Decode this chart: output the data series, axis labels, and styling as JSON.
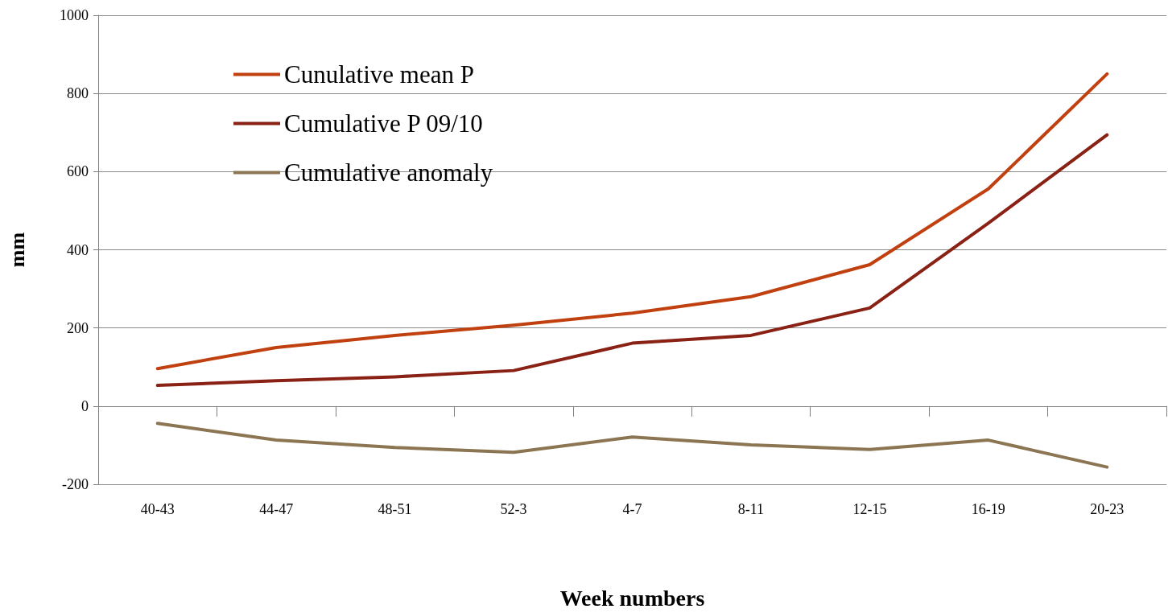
{
  "chart_data": {
    "type": "line",
    "xlabel": "Week numbers",
    "ylabel": "mm",
    "categories": [
      "40-43",
      "44-47",
      "48-51",
      "52-3",
      "4-7",
      "8-11",
      "12-15",
      "16-19",
      "20-23"
    ],
    "series": [
      {
        "name": "Cunulative mean P",
        "color": "#c0410f",
        "values": [
          96,
          150,
          181,
          207,
          238,
          280,
          362,
          556,
          850
        ]
      },
      {
        "name": "Cumulative P 09/10",
        "color": "#8a2115",
        "values": [
          53,
          65,
          75,
          91,
          161,
          181,
          251,
          468,
          694
        ]
      },
      {
        "name": "Cumulative anomaly",
        "color": "#8c7552",
        "values": [
          -44,
          -87,
          -106,
          -118,
          -79,
          -99,
          -111,
          -87,
          -156
        ]
      }
    ],
    "ylim": [
      -200,
      1000
    ],
    "yticks": [
      -200,
      0,
      200,
      400,
      600,
      800,
      1000
    ],
    "grid": "y",
    "legend": "top left",
    "marker": "none",
    "line_style": "solid"
  }
}
